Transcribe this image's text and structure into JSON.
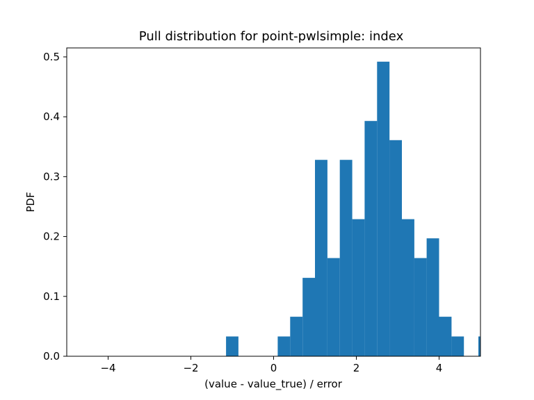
{
  "chart_data": {
    "type": "bar",
    "title": "Pull distribution for point-pwlsimple: index",
    "xlabel": "(value - value_true) / error",
    "ylabel": "PDF",
    "xlim": [
      -5,
      5
    ],
    "ylim": [
      0,
      0.515
    ],
    "x_ticks": [
      -4,
      -2,
      0,
      2,
      4
    ],
    "x_tick_labels": [
      "−4",
      "−2",
      "0",
      "2",
      "4"
    ],
    "y_ticks": [
      0.0,
      0.1,
      0.2,
      0.3,
      0.4,
      0.5
    ],
    "y_tick_labels": [
      "0.0",
      "0.1",
      "0.2",
      "0.3",
      "0.4",
      "0.5"
    ],
    "bar_color": "#1f77b4",
    "grid": false,
    "bins": [
      {
        "x0": -1.15,
        "x1": -0.85,
        "value": 0.033
      },
      {
        "x0": 0.1,
        "x1": 0.4,
        "value": 0.033
      },
      {
        "x0": 0.4,
        "x1": 0.7,
        "value": 0.066
      },
      {
        "x0": 0.7,
        "x1": 1.0,
        "value": 0.131
      },
      {
        "x0": 1.0,
        "x1": 1.3,
        "value": 0.328
      },
      {
        "x0": 1.3,
        "x1": 1.6,
        "value": 0.164
      },
      {
        "x0": 1.6,
        "x1": 1.9,
        "value": 0.328
      },
      {
        "x0": 1.9,
        "x1": 2.2,
        "value": 0.229
      },
      {
        "x0": 2.2,
        "x1": 2.5,
        "value": 0.393
      },
      {
        "x0": 2.5,
        "x1": 2.8,
        "value": 0.492
      },
      {
        "x0": 2.8,
        "x1": 3.1,
        "value": 0.361
      },
      {
        "x0": 3.1,
        "x1": 3.4,
        "value": 0.229
      },
      {
        "x0": 3.4,
        "x1": 3.7,
        "value": 0.164
      },
      {
        "x0": 3.7,
        "x1": 4.0,
        "value": 0.197
      },
      {
        "x0": 4.0,
        "x1": 4.3,
        "value": 0.066
      },
      {
        "x0": 4.3,
        "x1": 4.6,
        "value": 0.033
      },
      {
        "x0": 4.95,
        "x1": 5.0,
        "value": 0.033
      }
    ]
  }
}
